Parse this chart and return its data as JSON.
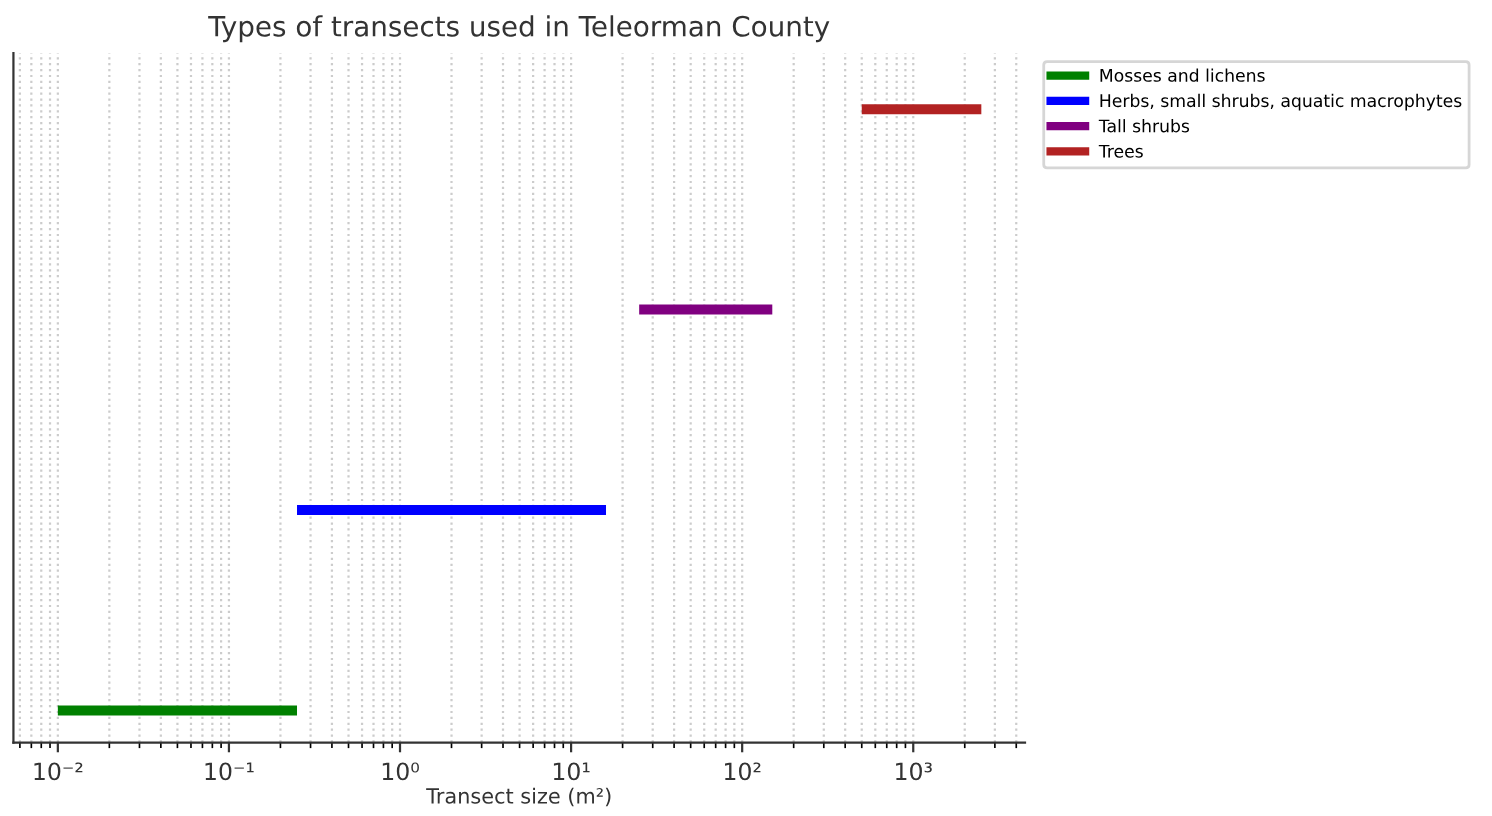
{
  "chart_data": {
    "type": "bar",
    "orientation": "horizontal",
    "stacked": true,
    "title": "Types of transects used in Teleorman County",
    "xlabel": "Transect size (m²)",
    "log": "x",
    "tick_labels": "x",
    "grid": "x",
    "legend": "top right",
    "categories": [
      null,
      null,
      null,
      null
    ],
    "xlim": [
      0.0055,
      4500
    ],
    "xticks": [
      {
        "value": 0.01,
        "label": "10⁻²"
      },
      {
        "value": 0.1,
        "label": "10⁻¹"
      },
      {
        "value": 1,
        "label": "10⁰"
      },
      {
        "value": 10,
        "label": "10¹"
      },
      {
        "value": 100,
        "label": "10²"
      },
      {
        "value": 1000,
        "label": "10³"
      }
    ],
    "series": [
      {
        "name": "Mosses and lichens",
        "color": "#008000",
        "base": [
          null,
          null,
          null,
          0.01
        ],
        "values": [
          null,
          null,
          null,
          0.24
        ]
      },
      {
        "name": "Herbs, small shrubs, aquatic macrophytes",
        "color": "#0000ff",
        "base": [
          null,
          null,
          0.25,
          null
        ],
        "values": [
          null,
          null,
          15.75,
          null
        ]
      },
      {
        "name": "Tall shrubs",
        "color": "#800080",
        "base": [
          null,
          25,
          null,
          null
        ],
        "values": [
          null,
          125,
          null,
          null
        ]
      },
      {
        "name": "Trees",
        "color": "#b22222",
        "base": [
          500,
          null,
          null,
          null
        ],
        "values": [
          2000,
          null,
          null,
          null
        ]
      }
    ]
  }
}
